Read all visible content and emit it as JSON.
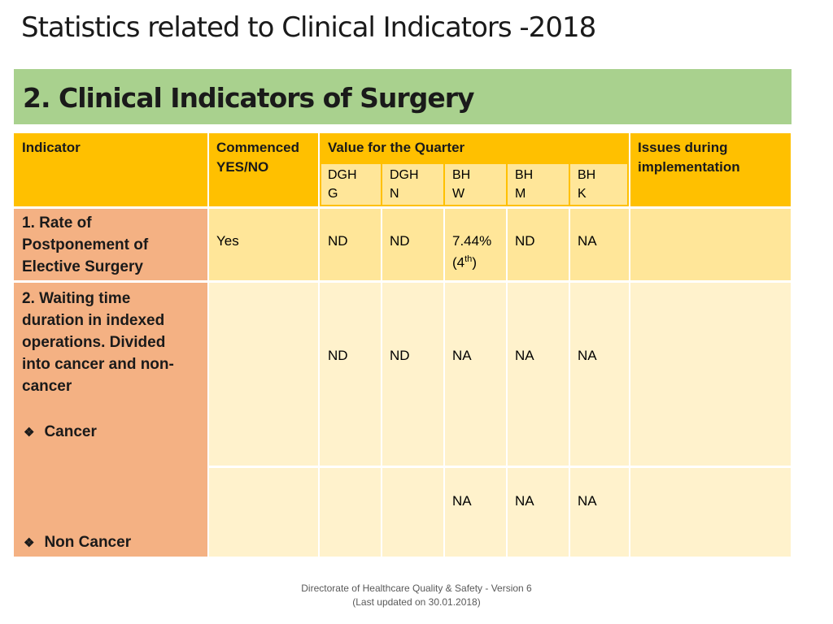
{
  "slide": {
    "title": "Statistics related to Clinical Indicators -2018"
  },
  "section": {
    "heading": "2. Clinical Indicators of Surgery"
  },
  "table": {
    "headers": {
      "indicator": "Indicator",
      "commenced_l1": "Commenced",
      "commenced_l2": "YES/NO",
      "value_quarter": "Value for the Quarter",
      "issues_l1": "Issues during",
      "issues_l2": "implementation"
    },
    "hospitals": [
      {
        "l1": "DGH",
        "l2": "G"
      },
      {
        "l1": "DGH",
        "l2": "N"
      },
      {
        "l1": "BH",
        "l2": "W"
      },
      {
        "l1": "BH",
        "l2": "M"
      },
      {
        "l1": "BH",
        "l2": "K"
      }
    ],
    "row1": {
      "indicator_l1": "1. Rate of",
      "indicator_l2": "Postponement of",
      "indicator_l3": "Elective Surgery",
      "commenced": "Yes",
      "values": [
        "ND",
        "ND",
        "7.44%",
        "ND",
        "NA"
      ],
      "bhw_note": "(4th)"
    },
    "row2": {
      "indicator_l1": "2. Waiting time",
      "indicator_l2": "duration in indexed",
      "indicator_l3": "operations. Divided",
      "indicator_l4": "into cancer and non-",
      "indicator_l5": "cancer",
      "cancer_label": "Cancer",
      "noncancer_label": "Non Cancer",
      "cancer_values": [
        "ND",
        "ND",
        "NA",
        "NA",
        "NA"
      ],
      "noncancer_values": [
        "",
        "",
        "NA",
        "NA",
        "NA"
      ]
    }
  },
  "footer": {
    "line1": "Directorate of Healthcare Quality & Safety - Version 6",
    "line2": "(Last updated on 30.01.2018)"
  }
}
